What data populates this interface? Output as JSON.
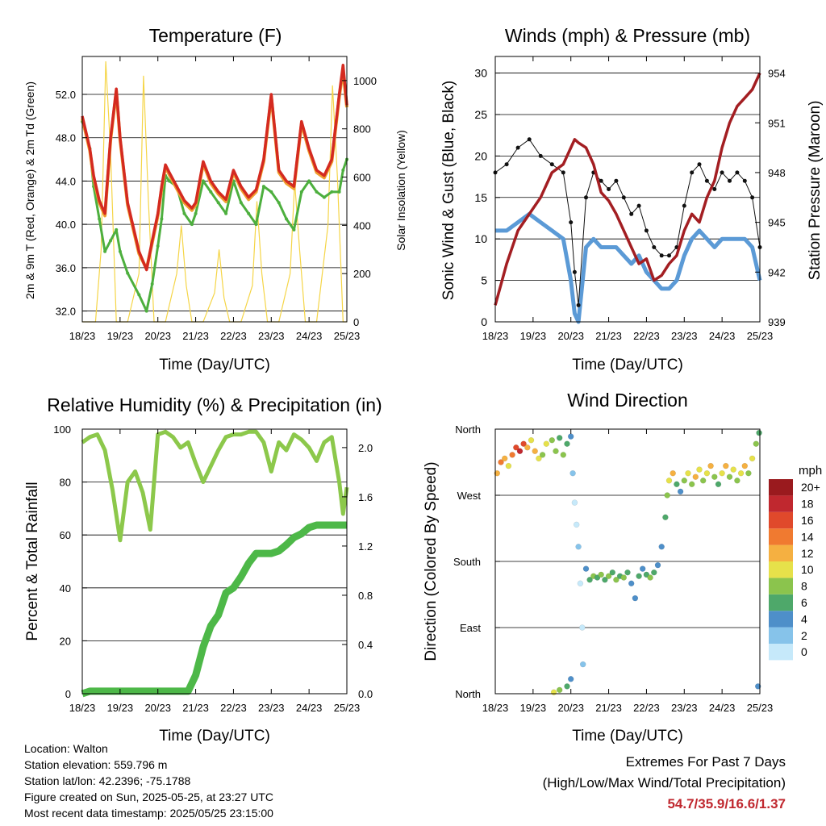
{
  "chart_data": [
    {
      "type": "line",
      "title": "Temperature (F)",
      "xlabel": "Time (Day/UTC)",
      "ylabel": "2m & 9m T (Red, Orange) & 2m Td (Green)",
      "ylabel_right": "Solar Insolation (Yellow)",
      "x_ticks": [
        "18/23",
        "19/23",
        "20/23",
        "21/23",
        "22/23",
        "23/23",
        "24/23",
        "25/23"
      ],
      "y_ticks": [
        "32.0",
        "36.0",
        "40.0",
        "44.0",
        "48.0",
        "52.0"
      ],
      "y_ticks_right": [
        "0",
        "200",
        "400",
        "600",
        "800",
        "1000"
      ],
      "ylim": [
        31,
        55.5
      ],
      "ylim_right": [
        0,
        1100
      ],
      "grid": true,
      "x_days": [
        0,
        0.2,
        0.3,
        0.45,
        0.6,
        0.75,
        0.9,
        1.0,
        1.2,
        1.5,
        1.7,
        1.85,
        2.0,
        2.1,
        2.2,
        2.3,
        2.5,
        2.7,
        2.9,
        3.0,
        3.2,
        3.4,
        3.6,
        3.8,
        4.0,
        4.2,
        4.4,
        4.6,
        4.8,
        5.0,
        5.2,
        5.4,
        5.6,
        5.8,
        6.0,
        6.2,
        6.4,
        6.6,
        6.8,
        6.9,
        7.0
      ],
      "series": [
        {
          "name": "2m T",
          "color": "#d42a20",
          "values": [
            50.0,
            47.0,
            44.5,
            42.2,
            41.0,
            48.0,
            52.5,
            48.0,
            42.0,
            37.5,
            35.8,
            38.5,
            41.0,
            43.5,
            45.5,
            44.8,
            43.5,
            42.2,
            41.5,
            42.0,
            45.8,
            44.0,
            43.0,
            42.3,
            45.0,
            43.5,
            42.5,
            43.2,
            46.0,
            52.0,
            45.0,
            44.0,
            43.5,
            49.5,
            47.0,
            45.0,
            44.5,
            46.0,
            52.0,
            54.7,
            51.0
          ]
        },
        {
          "name": "9m T",
          "color": "#f0a030",
          "values": [
            49.8,
            46.8,
            44.3,
            42.0,
            40.8,
            47.8,
            52.3,
            47.8,
            41.8,
            37.3,
            35.9,
            38.3,
            40.8,
            43.3,
            45.3,
            44.6,
            43.3,
            42.0,
            41.3,
            41.8,
            45.6,
            43.8,
            42.8,
            42.1,
            44.8,
            43.3,
            42.3,
            43.0,
            45.8,
            51.8,
            44.8,
            43.8,
            43.3,
            49.3,
            46.8,
            44.8,
            44.3,
            45.8,
            51.8,
            54.2,
            50.8
          ]
        },
        {
          "name": "2m Td",
          "color": "#4daf3e",
          "values": [
            49.5,
            47.0,
            43.5,
            40.5,
            37.5,
            38.5,
            39.5,
            37.5,
            35.5,
            33.5,
            32.0,
            34.5,
            38.0,
            40.5,
            44.5,
            44.0,
            43.5,
            41.0,
            40.0,
            41.0,
            44.0,
            43.0,
            42.0,
            41.0,
            44.0,
            42.0,
            41.0,
            40.0,
            43.5,
            43.0,
            42.0,
            40.5,
            39.5,
            43.0,
            44.0,
            43.0,
            42.5,
            43.0,
            43.0,
            45.0,
            46.0
          ]
        }
      ],
      "solar_x_days": [
        0,
        0.35,
        0.5,
        0.62,
        0.75,
        0.9,
        1.2,
        1.5,
        1.62,
        1.75,
        1.9,
        2.2,
        2.5,
        2.62,
        2.75,
        2.9,
        3.2,
        3.5,
        3.62,
        3.75,
        3.9,
        4.2,
        4.5,
        4.62,
        4.75,
        4.9,
        5.2,
        5.5,
        5.62,
        5.75,
        5.9,
        6.2,
        6.5,
        6.62,
        6.75,
        6.9,
        7.0
      ],
      "solar_values": [
        0,
        0,
        300,
        1080,
        700,
        0,
        0,
        200,
        1020,
        500,
        0,
        0,
        200,
        400,
        150,
        0,
        0,
        120,
        300,
        100,
        0,
        0,
        150,
        500,
        200,
        0,
        0,
        200,
        580,
        300,
        0,
        0,
        400,
        980,
        600,
        0,
        0
      ],
      "solar_color": "#f5d547"
    },
    {
      "type": "scatter",
      "title": "Winds (mph) & Pressure (mb)",
      "xlabel": "Time (Day/UTC)",
      "ylabel": "Sonic Wind & Gust (Blue, Black)",
      "ylabel_right": "Station Pressure (Maroon)",
      "x_ticks": [
        "18/23",
        "19/23",
        "20/23",
        "21/23",
        "22/23",
        "23/23",
        "24/23",
        "25/23"
      ],
      "y_ticks": [
        "0",
        "5",
        "10",
        "15",
        "20",
        "25",
        "30"
      ],
      "y_ticks_right": [
        "939",
        "942",
        "945",
        "948",
        "951",
        "954"
      ],
      "ylim": [
        0,
        32
      ],
      "ylim_right": [
        939,
        955
      ],
      "grid": true,
      "x_days": [
        0,
        0.3,
        0.6,
        0.9,
        1.2,
        1.5,
        1.8,
        2.0,
        2.1,
        2.2,
        2.4,
        2.6,
        2.8,
        3.0,
        3.2,
        3.4,
        3.6,
        3.8,
        4.0,
        4.2,
        4.4,
        4.6,
        4.8,
        5.0,
        5.2,
        5.4,
        5.6,
        5.8,
        6.0,
        6.2,
        6.4,
        6.6,
        6.8,
        7.0
      ],
      "series": [
        {
          "name": "Gust",
          "color": "#111111",
          "values": [
            18,
            19,
            21,
            22,
            20,
            19,
            18,
            12,
            6,
            2,
            15,
            18,
            17,
            16,
            17,
            15,
            13,
            14,
            11,
            9,
            8,
            8,
            9,
            14,
            18,
            19,
            17,
            16,
            18,
            17,
            18,
            17,
            15,
            9
          ]
        },
        {
          "name": "Wind",
          "color": "#5b9ad6",
          "values": [
            11,
            11,
            12,
            13,
            12,
            11,
            10,
            5,
            1,
            0,
            9,
            10,
            9,
            9,
            9,
            8,
            7,
            8,
            6,
            5,
            4,
            4,
            5,
            8,
            10,
            11,
            10,
            9,
            10,
            10,
            10,
            10,
            9,
            5
          ]
        },
        {
          "name": "Pressure",
          "color": "#a31e22",
          "axis": "right",
          "values": [
            940.0,
            942.5,
            944.5,
            945.5,
            946.5,
            948.0,
            948.5,
            949.5,
            950.0,
            949.8,
            949.5,
            948.5,
            946.8,
            946.3,
            945.5,
            944.5,
            943.5,
            942.5,
            942.8,
            941.5,
            941.8,
            942.5,
            943.0,
            944.5,
            945.5,
            945.0,
            946.5,
            947.5,
            949.5,
            951.0,
            952.0,
            952.5,
            953.0,
            954.0
          ]
        }
      ]
    },
    {
      "type": "line",
      "title": "Relative Humidity (%) & Precipitation (in)",
      "xlabel": "Time (Day/UTC)",
      "ylabel": "Percent & Total Rainfall",
      "x_ticks": [
        "18/23",
        "19/23",
        "20/23",
        "21/23",
        "22/23",
        "23/23",
        "24/23",
        "25/23"
      ],
      "y_ticks": [
        "0",
        "20",
        "40",
        "60",
        "80",
        "100"
      ],
      "y_ticks_right": [
        "0.0",
        "0.4",
        "0.8",
        "1.2",
        "1.6",
        "2.0"
      ],
      "ylim": [
        0,
        100
      ],
      "ylim_right": [
        0,
        2.15
      ],
      "grid": true,
      "x_days": [
        0,
        0.2,
        0.4,
        0.6,
        0.8,
        1.0,
        1.2,
        1.4,
        1.6,
        1.8,
        2.0,
        2.2,
        2.4,
        2.6,
        2.8,
        3.0,
        3.2,
        3.4,
        3.6,
        3.8,
        4.0,
        4.2,
        4.4,
        4.6,
        4.8,
        5.0,
        5.2,
        5.4,
        5.6,
        5.8,
        6.0,
        6.2,
        6.4,
        6.6,
        6.8,
        6.9,
        7.0
      ],
      "series": [
        {
          "name": "RH",
          "color": "#8cc84b",
          "values": [
            95,
            97,
            98,
            92,
            77,
            58,
            80,
            84,
            76,
            62,
            98,
            99,
            97,
            93,
            95,
            87,
            80,
            86,
            92,
            97,
            98,
            98,
            99,
            99,
            95,
            84,
            95,
            92,
            98,
            96,
            93,
            88,
            95,
            97,
            80,
            68,
            78
          ]
        },
        {
          "name": "Precipitation",
          "color": "#4db848",
          "axis": "right",
          "values": [
            0,
            0.02,
            0.02,
            0.02,
            0.02,
            0.02,
            0.02,
            0.02,
            0.02,
            0.02,
            0.02,
            0.02,
            0.02,
            0.02,
            0.02,
            0.15,
            0.38,
            0.55,
            0.64,
            0.82,
            0.86,
            0.95,
            1.06,
            1.14,
            1.14,
            1.14,
            1.16,
            1.21,
            1.27,
            1.3,
            1.35,
            1.37,
            1.37,
            1.37,
            1.37,
            1.37,
            1.37
          ]
        }
      ]
    },
    {
      "type": "scatter",
      "title": "Wind Direction",
      "xlabel": "Time (Day/UTC)",
      "ylabel": "Direction (Colored By Speed)",
      "x_ticks": [
        "18/23",
        "19/23",
        "20/23",
        "21/23",
        "22/23",
        "23/23",
        "24/23",
        "25/23"
      ],
      "y_ticks": [
        "North",
        "East",
        "South",
        "West",
        "North"
      ],
      "ylim": [
        0,
        360
      ],
      "grid": true,
      "legend_title": "mph",
      "legend_labels": [
        "0",
        "2",
        "4",
        "6",
        "8",
        "10",
        "12",
        "14",
        "16",
        "18",
        "20+"
      ],
      "legend_colors": [
        "#c6e9fa",
        "#86c3ea",
        "#4e8fc9",
        "#4ea86a",
        "#8bc44d",
        "#e6e14a",
        "#f5b041",
        "#f07a30",
        "#e0492b",
        "#c0282f",
        "#9a1a1e"
      ],
      "points": [
        {
          "x": 0.05,
          "y": 300,
          "s": 12
        },
        {
          "x": 0.15,
          "y": 315,
          "s": 14
        },
        {
          "x": 0.25,
          "y": 320,
          "s": 12
        },
        {
          "x": 0.35,
          "y": 310,
          "s": 10
        },
        {
          "x": 0.45,
          "y": 325,
          "s": 14
        },
        {
          "x": 0.55,
          "y": 335,
          "s": 16
        },
        {
          "x": 0.65,
          "y": 330,
          "s": 18
        },
        {
          "x": 0.75,
          "y": 340,
          "s": 16
        },
        {
          "x": 0.85,
          "y": 335,
          "s": 12
        },
        {
          "x": 0.95,
          "y": 345,
          "s": 10
        },
        {
          "x": 1.05,
          "y": 330,
          "s": 12
        },
        {
          "x": 1.15,
          "y": 320,
          "s": 10
        },
        {
          "x": 1.25,
          "y": 325,
          "s": 8
        },
        {
          "x": 1.35,
          "y": 340,
          "s": 10
        },
        {
          "x": 1.5,
          "y": 345,
          "s": 8
        },
        {
          "x": 1.6,
          "y": 330,
          "s": 8
        },
        {
          "x": 1.7,
          "y": 348,
          "s": 6
        },
        {
          "x": 1.8,
          "y": 325,
          "s": 8
        },
        {
          "x": 1.9,
          "y": 340,
          "s": 6
        },
        {
          "x": 2.0,
          "y": 350,
          "s": 4
        },
        {
          "x": 2.05,
          "y": 300,
          "s": 2
        },
        {
          "x": 2.1,
          "y": 260,
          "s": 0
        },
        {
          "x": 2.15,
          "y": 230,
          "s": 0
        },
        {
          "x": 2.2,
          "y": 200,
          "s": 2
        },
        {
          "x": 2.25,
          "y": 150,
          "s": 0
        },
        {
          "x": 2.3,
          "y": 90,
          "s": 0
        },
        {
          "x": 2.32,
          "y": 40,
          "s": 2
        },
        {
          "x": 2.0,
          "y": 20,
          "s": 4
        },
        {
          "x": 1.9,
          "y": 10,
          "s": 6
        },
        {
          "x": 1.7,
          "y": 5,
          "s": 8
        },
        {
          "x": 1.55,
          "y": 2,
          "s": 10
        },
        {
          "x": 2.4,
          "y": 170,
          "s": 4
        },
        {
          "x": 2.5,
          "y": 155,
          "s": 6
        },
        {
          "x": 2.6,
          "y": 160,
          "s": 8
        },
        {
          "x": 2.7,
          "y": 158,
          "s": 6
        },
        {
          "x": 2.8,
          "y": 162,
          "s": 8
        },
        {
          "x": 2.9,
          "y": 155,
          "s": 6
        },
        {
          "x": 3.0,
          "y": 160,
          "s": 8
        },
        {
          "x": 3.1,
          "y": 165,
          "s": 6
        },
        {
          "x": 3.2,
          "y": 155,
          "s": 8
        },
        {
          "x": 3.3,
          "y": 160,
          "s": 6
        },
        {
          "x": 3.4,
          "y": 158,
          "s": 8
        },
        {
          "x": 3.5,
          "y": 165,
          "s": 6
        },
        {
          "x": 3.6,
          "y": 150,
          "s": 4
        },
        {
          "x": 3.7,
          "y": 130,
          "s": 4
        },
        {
          "x": 3.8,
          "y": 160,
          "s": 6
        },
        {
          "x": 3.9,
          "y": 170,
          "s": 4
        },
        {
          "x": 4.0,
          "y": 162,
          "s": 6
        },
        {
          "x": 4.1,
          "y": 158,
          "s": 8
        },
        {
          "x": 4.2,
          "y": 165,
          "s": 6
        },
        {
          "x": 4.3,
          "y": 175,
          "s": 4
        },
        {
          "x": 4.4,
          "y": 200,
          "s": 4
        },
        {
          "x": 4.5,
          "y": 240,
          "s": 6
        },
        {
          "x": 4.55,
          "y": 270,
          "s": 8
        },
        {
          "x": 4.6,
          "y": 290,
          "s": 10
        },
        {
          "x": 4.7,
          "y": 300,
          "s": 12
        },
        {
          "x": 4.8,
          "y": 285,
          "s": 6
        },
        {
          "x": 4.9,
          "y": 275,
          "s": 4
        },
        {
          "x": 5.0,
          "y": 290,
          "s": 8
        },
        {
          "x": 5.1,
          "y": 300,
          "s": 10
        },
        {
          "x": 5.2,
          "y": 285,
          "s": 8
        },
        {
          "x": 5.3,
          "y": 295,
          "s": 12
        },
        {
          "x": 5.4,
          "y": 305,
          "s": 10
        },
        {
          "x": 5.5,
          "y": 290,
          "s": 8
        },
        {
          "x": 5.6,
          "y": 300,
          "s": 10
        },
        {
          "x": 5.7,
          "y": 310,
          "s": 12
        },
        {
          "x": 5.8,
          "y": 295,
          "s": 8
        },
        {
          "x": 5.9,
          "y": 285,
          "s": 6
        },
        {
          "x": 6.0,
          "y": 300,
          "s": 10
        },
        {
          "x": 6.1,
          "y": 310,
          "s": 12
        },
        {
          "x": 6.2,
          "y": 295,
          "s": 8
        },
        {
          "x": 6.3,
          "y": 305,
          "s": 10
        },
        {
          "x": 6.4,
          "y": 290,
          "s": 8
        },
        {
          "x": 6.5,
          "y": 300,
          "s": 10
        },
        {
          "x": 6.6,
          "y": 310,
          "s": 12
        },
        {
          "x": 6.7,
          "y": 300,
          "s": 8
        },
        {
          "x": 6.8,
          "y": 320,
          "s": 10
        },
        {
          "x": 6.9,
          "y": 340,
          "s": 8
        },
        {
          "x": 6.95,
          "y": 10,
          "s": 4
        },
        {
          "x": 6.98,
          "y": 355,
          "s": 6
        }
      ]
    }
  ],
  "info": {
    "location": "Location: Walton",
    "elevation": "Station elevation: 559.796 m",
    "latlon": "Station lat/lon: 42.2396; -75.1788",
    "created": "Figure created on Sun, 2025-05-25, at 23:27 UTC",
    "recent": "Most recent data timestamp: 2025/05/25 23:15:00"
  },
  "extremes": {
    "title": "Extremes For Past 7 Days",
    "subtitle": "(High/Low/Max Wind/Total Precipitation)",
    "values": "54.7/35.9/16.6/1.37"
  }
}
